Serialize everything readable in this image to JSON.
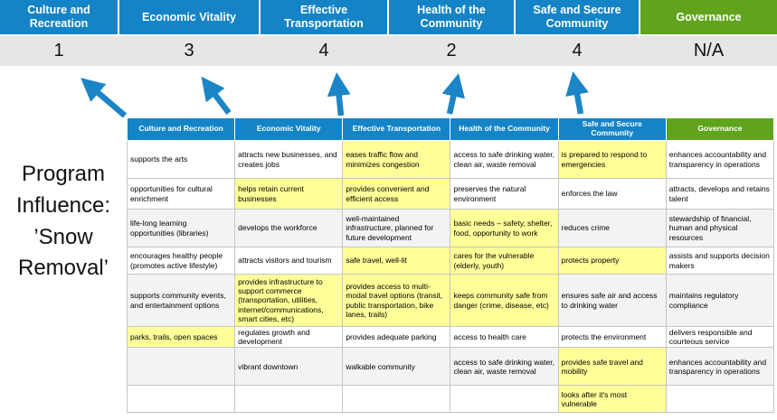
{
  "title": "Program\nInfluence:\n’Snow\nRemoval’",
  "colors": {
    "header_blue": "#1484C7",
    "governance_green": "#60A41E",
    "highlight_yellow": "#FFFF99",
    "score_band_bg": "#E6E6E6",
    "arrow_blue": "#1B85C6"
  },
  "scoreboard": {
    "columns": [
      {
        "label": "Culture and Recreation",
        "score": "1",
        "color": "blue"
      },
      {
        "label": "Economic Vitality",
        "score": "3",
        "color": "blue"
      },
      {
        "label": "Effective Transportation",
        "score": "4",
        "color": "blue"
      },
      {
        "label": "Health of the Community",
        "score": "2",
        "color": "blue"
      },
      {
        "label": "Safe and Secure Community",
        "score": "4",
        "color": "blue"
      },
      {
        "label": "Governance",
        "score": "N/A",
        "color": "green"
      }
    ]
  },
  "table": {
    "headers": [
      "Culture and Recreation",
      "Economic Vitality",
      "Effective Transportation",
      "Health of the Community",
      "Safe and Secure Community",
      "Governance"
    ],
    "rows": [
      [
        {
          "text": "supports the arts",
          "highlight": false
        },
        {
          "text": "attracts new businesses, and creates jobs",
          "highlight": false
        },
        {
          "text": "eases traffic flow and minimizes congestion",
          "highlight": true
        },
        {
          "text": "access to safe drinking water, clean air, waste removal",
          "highlight": false
        },
        {
          "text": "is prepared to respond to emergencies",
          "highlight": true
        },
        {
          "text": "enhances accountability and transparency in operations",
          "highlight": false
        }
      ],
      [
        {
          "text": "opportunities for cultural enrichment",
          "highlight": false
        },
        {
          "text": "helps retain current businesses",
          "highlight": true
        },
        {
          "text": "provides convenient and efficient access",
          "highlight": true
        },
        {
          "text": "preserves the natural environment",
          "highlight": false
        },
        {
          "text": "enforces the law",
          "highlight": false
        },
        {
          "text": "attracts, develops and retains talent",
          "highlight": false
        }
      ],
      [
        {
          "text": "life-long learning opportunities (libraries)",
          "highlight": false
        },
        {
          "text": "develops the workforce",
          "highlight": false
        },
        {
          "text": "well-maintained infrastructure, planned for future development",
          "highlight": false
        },
        {
          "text": "basic needs – safety, shelter, food, opportunity to work",
          "highlight": true
        },
        {
          "text": "reduces crime",
          "highlight": false
        },
        {
          "text": "stewardship of financial, human and physical resources",
          "highlight": false
        }
      ],
      [
        {
          "text": "encourages healthy people (promotes active lifestyle)",
          "highlight": false
        },
        {
          "text": "attracts visitors and tourism",
          "highlight": false
        },
        {
          "text": "safe travel, well-lit",
          "highlight": true
        },
        {
          "text": "cares for the vulnerable (elderly, youth)",
          "highlight": true
        },
        {
          "text": "protects property",
          "highlight": true
        },
        {
          "text": "assists and supports decision makers",
          "highlight": false
        }
      ],
      [
        {
          "text": "supports community events, and entertainment options",
          "highlight": false
        },
        {
          "text": "provides infrastructure to support commerce (transportation, utilities, internet/communications, smart cities, etc)",
          "highlight": true
        },
        {
          "text": "provides access to multi-modal travel options (transit, public transportation, bike lanes, trails)",
          "highlight": true
        },
        {
          "text": "keeps community safe from danger (crime, disease, etc)",
          "highlight": true
        },
        {
          "text": "ensures safe air and access to drinking water",
          "highlight": false
        },
        {
          "text": "maintains regulatory compliance",
          "highlight": false
        }
      ],
      [
        {
          "text": "parks, trails, open spaces",
          "highlight": true
        },
        {
          "text": "regulates growth and development",
          "highlight": false
        },
        {
          "text": "provides adequate parking",
          "highlight": false
        },
        {
          "text": "access to health care",
          "highlight": false
        },
        {
          "text": "protects the environment",
          "highlight": false
        },
        {
          "text": "delivers responsible and courteous service",
          "highlight": false
        }
      ],
      [
        {
          "text": "",
          "highlight": false
        },
        {
          "text": "vibrant downtown",
          "highlight": false
        },
        {
          "text": "walkable community",
          "highlight": false
        },
        {
          "text": "access to safe drinking water, clean air, waste removal",
          "highlight": false
        },
        {
          "text": "provides safe travel and mobility",
          "highlight": true
        },
        {
          "text": "enhances accountability and transparency in operations",
          "highlight": false
        }
      ],
      [
        {
          "text": "",
          "highlight": false
        },
        {
          "text": "",
          "highlight": false
        },
        {
          "text": "",
          "highlight": false
        },
        {
          "text": "",
          "highlight": false
        },
        {
          "text": "looks after it's most vulnerable",
          "highlight": true
        },
        {
          "text": "",
          "highlight": false
        }
      ]
    ]
  }
}
